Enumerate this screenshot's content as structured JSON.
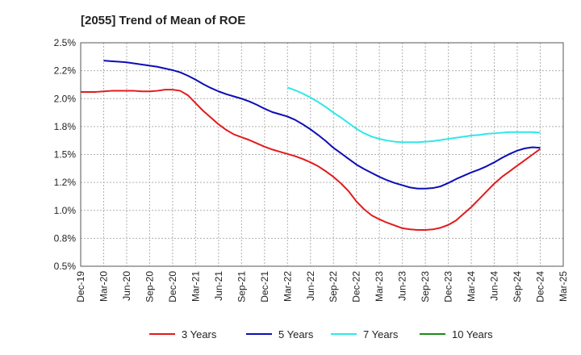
{
  "chart_data": {
    "type": "line",
    "title": "[2055]  Trend of Mean of ROE",
    "xlabel": "",
    "ylabel": "",
    "x_ticks": [
      "Dec-19",
      "Mar-20",
      "Jun-20",
      "Sep-20",
      "Dec-20",
      "Mar-21",
      "Jun-21",
      "Sep-21",
      "Dec-21",
      "Mar-22",
      "Jun-22",
      "Sep-22",
      "Dec-22",
      "Mar-23",
      "Jun-23",
      "Sep-23",
      "Dec-23",
      "Mar-24",
      "Jun-24",
      "Sep-24",
      "Dec-24",
      "Mar-25"
    ],
    "y_ticks": [
      "0.5%",
      "0.8%",
      "1.0%",
      "1.2%",
      "1.5%",
      "1.8%",
      "2.0%",
      "2.2%",
      "2.5%"
    ],
    "y_tick_values": [
      0.5,
      0.75,
      1.0,
      1.25,
      1.5,
      1.75,
      2.0,
      2.25,
      2.5
    ],
    "ylim": [
      0.5,
      2.5
    ],
    "grid": true,
    "legend_position": "bottom",
    "series": [
      {
        "name": "3 Years",
        "color": "#e31a1c",
        "x": [
          "Dec-19",
          "Jan-20",
          "Feb-20",
          "Mar-20",
          "Apr-20",
          "May-20",
          "Jun-20",
          "Jul-20",
          "Aug-20",
          "Sep-20",
          "Oct-20",
          "Nov-20",
          "Dec-20",
          "Jan-21",
          "Feb-21",
          "Mar-21",
          "Apr-21",
          "May-21",
          "Jun-21",
          "Jul-21",
          "Aug-21",
          "Sep-21",
          "Oct-21",
          "Nov-21",
          "Dec-21",
          "Jan-22",
          "Feb-22",
          "Mar-22",
          "Apr-22",
          "May-22",
          "Jun-22",
          "Jul-22",
          "Aug-22",
          "Sep-22",
          "Oct-22",
          "Nov-22",
          "Dec-22",
          "Jan-23",
          "Feb-23",
          "Mar-23",
          "Apr-23",
          "May-23",
          "Jun-23",
          "Jul-23",
          "Aug-23",
          "Sep-23",
          "Oct-23",
          "Nov-23",
          "Dec-23",
          "Jan-24",
          "Feb-24",
          "Mar-24",
          "Apr-24",
          "May-24",
          "Jun-24",
          "Jul-24",
          "Aug-24",
          "Sep-24",
          "Oct-24",
          "Nov-24",
          "Dec-24"
        ],
        "values": [
          2.06,
          2.06,
          2.06,
          2.065,
          2.07,
          2.07,
          2.07,
          2.07,
          2.065,
          2.065,
          2.07,
          2.08,
          2.08,
          2.07,
          2.03,
          1.96,
          1.89,
          1.83,
          1.77,
          1.72,
          1.68,
          1.655,
          1.63,
          1.6,
          1.57,
          1.545,
          1.525,
          1.505,
          1.485,
          1.46,
          1.43,
          1.395,
          1.35,
          1.3,
          1.24,
          1.17,
          1.08,
          1.01,
          0.955,
          0.92,
          0.89,
          0.865,
          0.84,
          0.83,
          0.825,
          0.825,
          0.83,
          0.845,
          0.87,
          0.91,
          0.97,
          1.03,
          1.1,
          1.17,
          1.24,
          1.3,
          1.35,
          1.4,
          1.45,
          1.5,
          1.55
        ]
      },
      {
        "name": "5 Years",
        "color": "#0d0db5",
        "x": [
          "Mar-20",
          "Apr-20",
          "May-20",
          "Jun-20",
          "Jul-20",
          "Aug-20",
          "Sep-20",
          "Oct-20",
          "Nov-20",
          "Dec-20",
          "Jan-21",
          "Feb-21",
          "Mar-21",
          "Apr-21",
          "May-21",
          "Jun-21",
          "Jul-21",
          "Aug-21",
          "Sep-21",
          "Oct-21",
          "Nov-21",
          "Dec-21",
          "Jan-22",
          "Feb-22",
          "Mar-22",
          "Apr-22",
          "May-22",
          "Jun-22",
          "Jul-22",
          "Aug-22",
          "Sep-22",
          "Oct-22",
          "Nov-22",
          "Dec-22",
          "Jan-23",
          "Feb-23",
          "Mar-23",
          "Apr-23",
          "May-23",
          "Jun-23",
          "Jul-23",
          "Aug-23",
          "Sep-23",
          "Oct-23",
          "Nov-23",
          "Dec-23",
          "Jan-24",
          "Feb-24",
          "Mar-24",
          "Apr-24",
          "May-24",
          "Jun-24",
          "Jul-24",
          "Aug-24",
          "Sep-24",
          "Oct-24",
          "Nov-24",
          "Dec-24"
        ],
        "values": [
          2.34,
          2.335,
          2.33,
          2.325,
          2.315,
          2.305,
          2.295,
          2.285,
          2.27,
          2.255,
          2.235,
          2.205,
          2.17,
          2.13,
          2.095,
          2.065,
          2.04,
          2.02,
          2.0,
          1.975,
          1.945,
          1.91,
          1.88,
          1.86,
          1.84,
          1.81,
          1.77,
          1.725,
          1.675,
          1.62,
          1.56,
          1.51,
          1.46,
          1.41,
          1.37,
          1.335,
          1.3,
          1.27,
          1.245,
          1.225,
          1.205,
          1.195,
          1.195,
          1.2,
          1.215,
          1.245,
          1.28,
          1.31,
          1.34,
          1.365,
          1.395,
          1.43,
          1.47,
          1.505,
          1.535,
          1.555,
          1.565,
          1.56
        ]
      },
      {
        "name": "7 Years",
        "color": "#2ee8e8",
        "x": [
          "Mar-22",
          "Apr-22",
          "May-22",
          "Jun-22",
          "Jul-22",
          "Aug-22",
          "Sep-22",
          "Oct-22",
          "Nov-22",
          "Dec-22",
          "Jan-23",
          "Feb-23",
          "Mar-23",
          "Apr-23",
          "May-23",
          "Jun-23",
          "Jul-23",
          "Aug-23",
          "Sep-23",
          "Oct-23",
          "Nov-23",
          "Dec-23",
          "Jan-24",
          "Feb-24",
          "Mar-24",
          "Apr-24",
          "May-24",
          "Jun-24",
          "Jul-24",
          "Aug-24",
          "Sep-24",
          "Oct-24",
          "Nov-24",
          "Dec-24"
        ],
        "values": [
          2.1,
          2.075,
          2.045,
          2.01,
          1.97,
          1.925,
          1.875,
          1.83,
          1.78,
          1.73,
          1.69,
          1.66,
          1.64,
          1.625,
          1.615,
          1.61,
          1.61,
          1.61,
          1.615,
          1.62,
          1.63,
          1.64,
          1.65,
          1.66,
          1.67,
          1.675,
          1.685,
          1.69,
          1.695,
          1.7,
          1.7,
          1.7,
          1.7,
          1.695
        ]
      },
      {
        "name": "10 Years",
        "color": "#1a8a1a",
        "x": [],
        "values": []
      }
    ]
  }
}
